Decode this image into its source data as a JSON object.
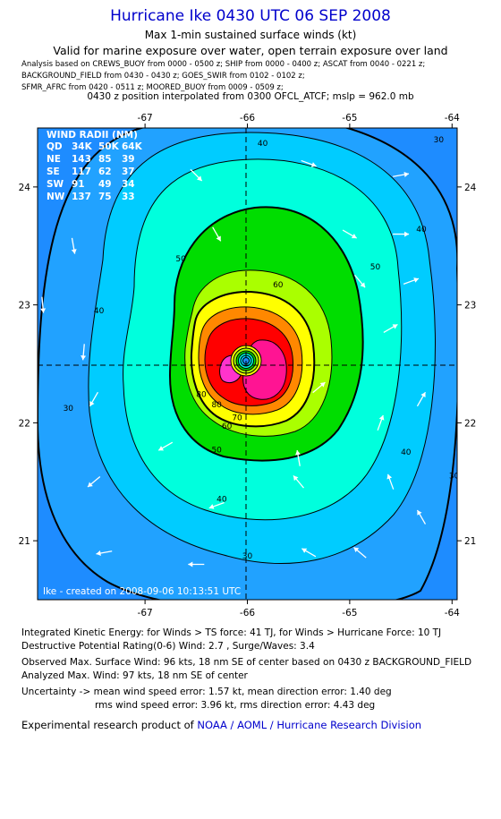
{
  "header": {
    "title": "Hurricane Ike 0430 UTC 06 SEP 2008",
    "subtitle": "Max 1-min sustained surface winds (kt)",
    "valid": "Valid for marine exposure over water, open terrain exposure over land",
    "sources": [
      "Analysis based on  CREWS_BUOY from 0000 - 0500 z;  SHIP from 0000 - 0400 z;  ASCAT from 0040 - 0221 z;",
      "BACKGROUND_FIELD from 0430 - 0430 z;  GOES_SWIR from 0102 - 0102 z;",
      "SFMR_AFRC from 0420 - 0511 z;  MOORED_BUOY from 0009 - 0509 z;"
    ],
    "position": "0430 z position interpolated from 0300 OFCL_ATCF; mslp = 962.0 mb"
  },
  "wind_radii": {
    "title": "WIND RADII (NM)",
    "columns": [
      "QD",
      "34K",
      "50K",
      "64K"
    ],
    "rows": [
      [
        "NE",
        "143",
        "85",
        "39"
      ],
      [
        "SE",
        "117",
        "62",
        "37"
      ],
      [
        "SW",
        "91",
        "49",
        "34"
      ],
      [
        "NW",
        "137",
        "75",
        "33"
      ]
    ]
  },
  "chart_data": {
    "type": "heatmap",
    "x_ticks": [
      "-67",
      "-66",
      "-65",
      "-64"
    ],
    "y_ticks": [
      "24",
      "23",
      "22",
      "21"
    ],
    "x_tick_values": [
      -67,
      -66,
      -65,
      -64
    ],
    "y_tick_values": [
      24,
      23,
      22,
      21
    ],
    "xlim": [
      -68.05,
      -63.95
    ],
    "ylim": [
      20.5,
      24.5
    ],
    "center": {
      "lon": -66.0,
      "lat": 22.55
    },
    "contour_levels": [
      30,
      40,
      50,
      60,
      70,
      80
    ],
    "contour_labels": [
      {
        "text": "40",
        "lon": -65.85,
        "lat": 24.35
      },
      {
        "text": "30",
        "lon": -64.13,
        "lat": 24.38
      },
      {
        "text": "40",
        "lon": -64.3,
        "lat": 23.62
      },
      {
        "text": "50",
        "lon": -66.65,
        "lat": 23.37
      },
      {
        "text": "50",
        "lon": -64.75,
        "lat": 23.3
      },
      {
        "text": "60",
        "lon": -65.7,
        "lat": 23.15
      },
      {
        "text": "40",
        "lon": -67.45,
        "lat": 22.93
      },
      {
        "text": "80",
        "lon": -66.45,
        "lat": 22.22
      },
      {
        "text": "80",
        "lon": -66.3,
        "lat": 22.13
      },
      {
        "text": "70",
        "lon": -66.1,
        "lat": 22.02
      },
      {
        "text": "60",
        "lon": -66.2,
        "lat": 21.95
      },
      {
        "text": "50",
        "lon": -66.3,
        "lat": 21.75
      },
      {
        "text": "30",
        "lon": -67.75,
        "lat": 22.1
      },
      {
        "text": "40",
        "lon": -64.45,
        "lat": 21.73
      },
      {
        "text": "30",
        "lon": -63.98,
        "lat": 21.53
      },
      {
        "text": "40",
        "lon": -66.25,
        "lat": 21.33
      },
      {
        "text": "30",
        "lon": -66.0,
        "lat": 20.85
      }
    ],
    "wind_arrows": [
      [
        -66.5,
        24.1,
        45
      ],
      [
        -65.4,
        24.2,
        20
      ],
      [
        -64.5,
        24.1,
        -10
      ],
      [
        -67.7,
        23.5,
        80
      ],
      [
        -66.3,
        23.6,
        60
      ],
      [
        -65.0,
        23.6,
        30
      ],
      [
        -64.5,
        23.6,
        0
      ],
      [
        -68.0,
        23.0,
        85
      ],
      [
        -64.4,
        23.2,
        -20
      ],
      [
        -64.9,
        23.2,
        50
      ],
      [
        -67.6,
        22.6,
        95
      ],
      [
        -64.6,
        22.8,
        -30
      ],
      [
        -64.3,
        22.2,
        -60
      ],
      [
        -67.5,
        22.2,
        120
      ],
      [
        -65.3,
        22.3,
        -40
      ],
      [
        -64.7,
        22.0,
        -70
      ],
      [
        -67.5,
        21.5,
        140
      ],
      [
        -66.8,
        21.8,
        150
      ],
      [
        -65.5,
        21.7,
        -100
      ],
      [
        -64.6,
        21.5,
        -110
      ],
      [
        -67.4,
        20.9,
        170
      ],
      [
        -66.3,
        21.3,
        160
      ],
      [
        -65.5,
        21.5,
        -130
      ],
      [
        -64.3,
        21.2,
        -120
      ],
      [
        -66.5,
        20.8,
        180
      ],
      [
        -65.4,
        20.9,
        -150
      ],
      [
        -64.9,
        20.9,
        -140
      ]
    ],
    "footer_label": "Ike  -  created on 2008-09-06 10:13:51 UTC"
  },
  "colors": {
    "c30": "#21a2ff",
    "c40": "#00ccff",
    "c50": "#00ffdd",
    "c60": "#00dd00",
    "c70": "#aaff00",
    "c80": "#ffff00",
    "c90": "#ff8800",
    "c100": "#ff0000",
    "c110": "#ff1493",
    "c120": "#ff33cc",
    "eye": "#00ccff"
  },
  "stats": {
    "ike": "Integrated Kinetic Energy:  for Winds > TS force: 41 TJ,  for Winds > Hurricane Force: 10 TJ",
    "dpr": "Destructive Potential Rating(0-6)   Wind: 2.7 , Surge/Waves: 3.4",
    "observed": "Observed Max. Surface Wind: 96 kts, 18 nm SE of center based on 0430 z BACKGROUND_FIELD",
    "analyzed": "Analyzed Max. Wind: 97 kts, 18 nm SE of center",
    "uncert1": "Uncertainty -> mean wind speed error: 1.57 kt,   mean direction error: 1.40 deg",
    "uncert2": "rms wind speed error: 3.96 kt,   rms direction error: 4.43 deg",
    "product_prefix": "Experimental research product of ",
    "product_org": "NOAA / AOML / Hurricane Research Division"
  }
}
